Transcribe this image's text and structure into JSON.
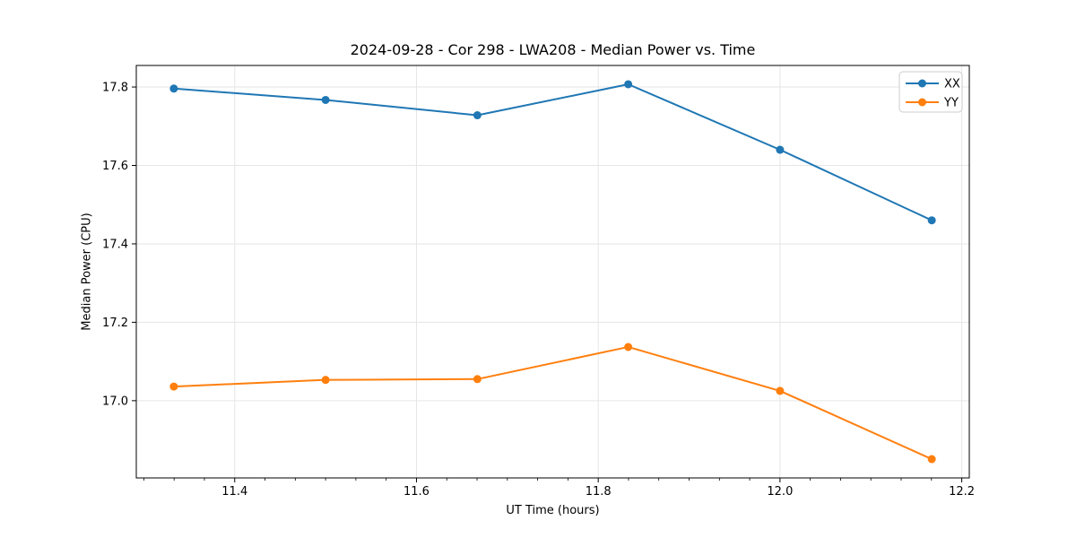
{
  "chart_data": {
    "type": "line",
    "title": "2024-09-28 - Cor 298 - LWA208 - Median Power vs. Time",
    "xlabel": "UT Time (hours)",
    "ylabel": "Median Power (CPU)",
    "x": [
      11.333,
      11.5,
      11.667,
      11.833,
      12.0,
      12.167
    ],
    "series": [
      {
        "name": "XX",
        "color": "#1f77b4",
        "values": [
          17.796,
          17.767,
          17.728,
          17.807,
          17.64,
          17.46
        ]
      },
      {
        "name": "YY",
        "color": "#ff7f0e",
        "values": [
          17.036,
          17.053,
          17.055,
          17.137,
          17.025,
          16.851
        ]
      }
    ],
    "xlim": [
      11.2917,
      12.2083
    ],
    "ylim": [
      16.803,
      17.855
    ],
    "x_ticks": [
      11.4,
      11.6,
      11.8,
      12.0,
      12.2
    ],
    "y_ticks": [
      17.0,
      17.2,
      17.4,
      17.6,
      17.8
    ],
    "x_minor_step": 0.0333333,
    "tick_decimals": 1,
    "grid": true,
    "legend_position": "upper right",
    "colors": {
      "axis": "#000000",
      "grid": "#e6e6e6",
      "legend_border": "#cccccc",
      "background": "#ffffff"
    }
  }
}
